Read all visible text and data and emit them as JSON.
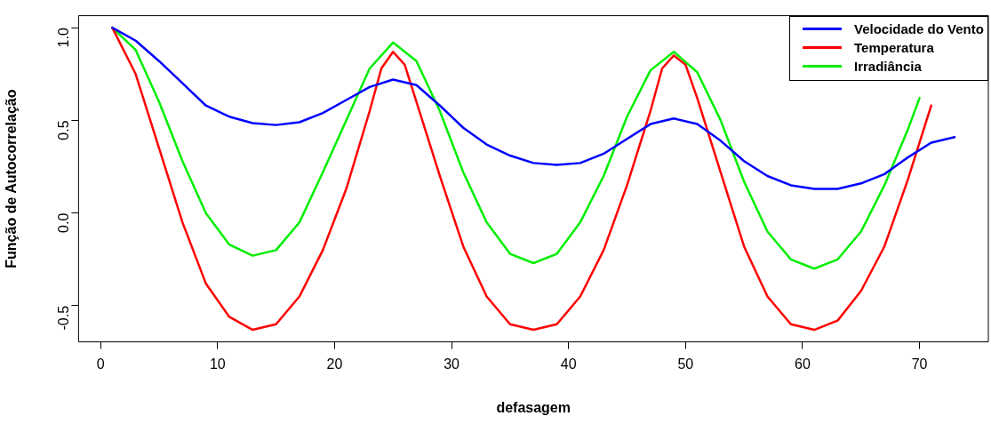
{
  "chart_data": {
    "type": "line",
    "xlabel": "defasagem",
    "ylabel": "Função de Autocorrelação",
    "xlim": [
      -1.88,
      75.88
    ],
    "xticks": [
      0,
      10,
      20,
      30,
      40,
      50,
      60,
      70
    ],
    "ylim": [
      -0.695,
      1.065
    ],
    "yticks": [
      -0.5,
      {
        "value": 0,
        "label": "0.0"
      },
      0.5,
      {
        "value": 1,
        "label": "1.0"
      }
    ],
    "grid": false,
    "legend": "top right",
    "marker": "none",
    "line_style": "solid",
    "series": [
      {
        "name": "Velocidade do Vento",
        "color": "#0000ff",
        "x": [
          1,
          3,
          5,
          7,
          9,
          11,
          13,
          15,
          17,
          19,
          21,
          23,
          25,
          27,
          29,
          31,
          33,
          35,
          37,
          39,
          41,
          43,
          45,
          47,
          49,
          51,
          53,
          55,
          57,
          59,
          61,
          63,
          65,
          67,
          69,
          71,
          73
        ],
        "values": [
          1.0,
          0.93,
          0.82,
          0.7,
          0.58,
          0.52,
          0.485,
          0.475,
          0.49,
          0.54,
          0.61,
          0.68,
          0.72,
          0.69,
          0.58,
          0.46,
          0.37,
          0.31,
          0.27,
          0.26,
          0.27,
          0.32,
          0.4,
          0.48,
          0.51,
          0.48,
          0.39,
          0.28,
          0.2,
          0.15,
          0.13,
          0.13,
          0.16,
          0.21,
          0.3,
          0.38,
          0.41
        ]
      },
      {
        "name": "Temperatura",
        "color": "#ff0000",
        "x": [
          1,
          3,
          5,
          7,
          9,
          11,
          13,
          15,
          17,
          19,
          21,
          23,
          24,
          25,
          26,
          27,
          29,
          31,
          33,
          35,
          37,
          39,
          41,
          43,
          45,
          47,
          48,
          49,
          50,
          51,
          53,
          55,
          57,
          59,
          61,
          63,
          65,
          67,
          69,
          71
        ],
        "values": [
          1.0,
          0.75,
          0.35,
          -0.05,
          -0.38,
          -0.56,
          -0.63,
          -0.6,
          -0.45,
          -0.2,
          0.13,
          0.55,
          0.78,
          0.87,
          0.8,
          0.6,
          0.2,
          -0.18,
          -0.45,
          -0.6,
          -0.63,
          -0.6,
          -0.45,
          -0.2,
          0.15,
          0.55,
          0.78,
          0.85,
          0.8,
          0.62,
          0.22,
          -0.18,
          -0.45,
          -0.6,
          -0.63,
          -0.58,
          -0.42,
          -0.18,
          0.18,
          0.58
        ]
      },
      {
        "name": "Irradiância",
        "color": "#00ee00",
        "x": [
          1,
          3,
          5,
          7,
          9,
          11,
          13,
          15,
          17,
          19,
          21,
          23,
          25,
          27,
          29,
          31,
          33,
          35,
          37,
          39,
          41,
          43,
          45,
          47,
          49,
          51,
          53,
          55,
          57,
          59,
          61,
          63,
          65,
          67,
          69,
          70
        ],
        "values": [
          1.0,
          0.88,
          0.6,
          0.28,
          0.0,
          -0.17,
          -0.23,
          -0.2,
          -0.05,
          0.22,
          0.5,
          0.78,
          0.92,
          0.82,
          0.55,
          0.22,
          -0.05,
          -0.22,
          -0.27,
          -0.22,
          -0.05,
          0.2,
          0.52,
          0.77,
          0.87,
          0.76,
          0.5,
          0.17,
          -0.1,
          -0.25,
          -0.3,
          -0.25,
          -0.1,
          0.15,
          0.45,
          0.62
        ]
      }
    ]
  }
}
